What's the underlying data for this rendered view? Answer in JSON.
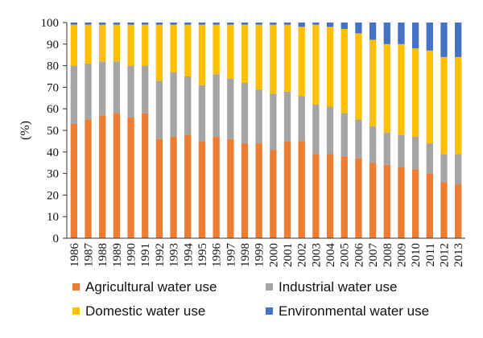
{
  "chart_data": {
    "type": "bar",
    "stacked": true,
    "title": "",
    "xlabel": "",
    "ylabel": "(%)",
    "ylim": [
      0,
      100
    ],
    "yticks": [
      0,
      10,
      20,
      30,
      40,
      50,
      60,
      70,
      80,
      90,
      100
    ],
    "grid": false,
    "legend_position": "bottom",
    "categories": [
      "1986",
      "1987",
      "1988",
      "1989",
      "1990",
      "1991",
      "1992",
      "1993",
      "1994",
      "1995",
      "1996",
      "1997",
      "1998",
      "1999",
      "2000",
      "2001",
      "2002",
      "2003",
      "2004",
      "2005",
      "2006",
      "2007",
      "2008",
      "2009",
      "2010",
      "2011",
      "2012",
      "2013"
    ],
    "series": [
      {
        "name": "Agricultural water use",
        "color": "#ED7D31",
        "values": [
          53,
          55,
          57,
          58,
          56,
          58,
          46,
          47,
          48,
          45,
          47,
          46,
          44,
          44,
          41,
          45,
          45,
          39,
          39,
          38,
          37,
          35,
          34,
          33,
          32,
          30,
          26,
          25
        ]
      },
      {
        "name": "Industrial water use",
        "color": "#A5A5A5",
        "values": [
          27,
          26,
          25,
          24,
          24,
          22,
          27,
          30,
          27,
          26,
          29,
          28,
          28,
          25,
          26,
          23,
          21,
          23,
          22,
          20,
          18,
          17,
          15,
          15,
          15,
          14,
          13,
          14
        ]
      },
      {
        "name": "Domestic water use",
        "color": "#FFC000",
        "values": [
          19,
          18,
          17,
          17,
          19,
          19,
          26,
          22,
          24,
          28,
          23,
          25,
          27,
          30,
          32,
          31,
          32,
          37,
          37,
          39,
          40,
          40,
          41,
          42,
          41,
          43,
          45,
          45
        ]
      },
      {
        "name": "Environmental water use",
        "color": "#4472C4",
        "values": [
          1,
          1,
          1,
          1,
          1,
          1,
          1,
          1,
          1,
          1,
          1,
          1,
          1,
          1,
          1,
          1,
          2,
          1,
          2,
          3,
          5,
          8,
          10,
          10,
          12,
          13,
          16,
          16
        ]
      }
    ]
  }
}
